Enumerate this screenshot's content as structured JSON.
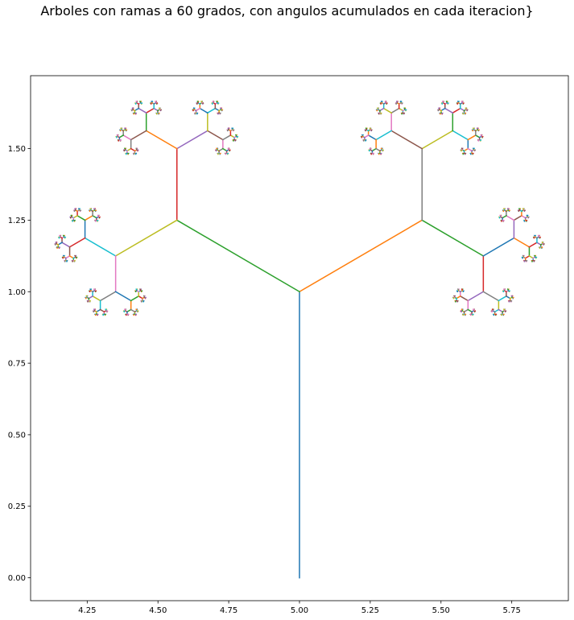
{
  "title": "Arboles con ramas a 60 grados, con angulos acumulados en cada iteracion}",
  "chart_data": {
    "type": "line",
    "title": "Arboles con ramas a 60 grados, con angulos acumulados en cada iteracion}",
    "xlabel": "",
    "ylabel": "",
    "xlim": [
      4.05,
      5.95
    ],
    "ylim": [
      -0.08,
      1.755
    ],
    "x_ticks": [
      4.25,
      4.5,
      4.75,
      5.0,
      5.25,
      5.5,
      5.75
    ],
    "x_tick_labels": [
      "4.25",
      "4.50",
      "4.75",
      "5.00",
      "5.25",
      "5.50",
      "5.75"
    ],
    "y_ticks": [
      0.0,
      0.25,
      0.5,
      0.75,
      1.0,
      1.25,
      1.5
    ],
    "y_tick_labels": [
      "0.00",
      "0.25",
      "0.50",
      "0.75",
      "1.00",
      "1.25",
      "1.50"
    ],
    "grid": false,
    "legend": "none",
    "root": {
      "x": 5.0,
      "y": 0.0
    },
    "initial_length": 1.0,
    "branch_angle_deg": 60,
    "length_ratio": 0.5,
    "depth": 9,
    "segment_count": 1023,
    "colors": [
      "#1f77b4",
      "#ff7f0e",
      "#2ca02c",
      "#d62728",
      "#9467bd",
      "#8c564b",
      "#e377c2",
      "#7f7f7f",
      "#bcbd22",
      "#17becf"
    ]
  }
}
